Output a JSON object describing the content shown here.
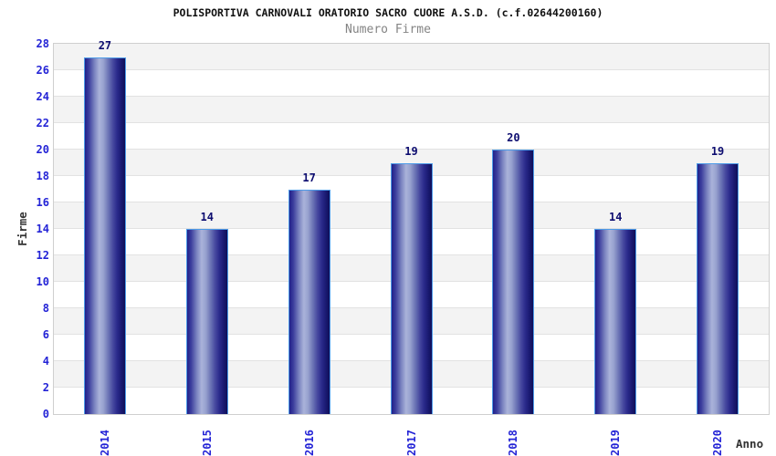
{
  "chart_data": {
    "type": "bar",
    "title": "POLISPORTIVA CARNOVALI ORATORIO SACRO CUORE A.S.D. (c.f.02644200160)",
    "subtitle": "Numero Firme",
    "xlabel": "Anno",
    "ylabel": "Firme",
    "categories": [
      "2014",
      "2015",
      "2016",
      "2017",
      "2018",
      "2019",
      "2020"
    ],
    "values": [
      27,
      14,
      17,
      19,
      20,
      14,
      19
    ],
    "ylim": [
      0,
      28
    ],
    "ytick_step": 2,
    "grid": true,
    "band_fill": true,
    "legend_position": "none",
    "colors": {
      "bar_gradient": [
        "#20208a",
        "#3d3f9e",
        "#7b84c0",
        "#aab3da",
        "#98a2cf",
        "#6d76b6",
        "#46489f",
        "#2b2b8c",
        "#1b1b74",
        "#0f0f58"
      ],
      "bar_gradient_stops": [
        0,
        10,
        24,
        36,
        46,
        58,
        70,
        80,
        90,
        100
      ],
      "bar_border": "#4e9ce8",
      "tick_label": "#2424d6",
      "value_label": "#0d0d70",
      "band_gray": "#f3f3f3",
      "band_white": "#ffffff",
      "gridline": "#e2e2e2",
      "plot_border": "#cfcfcf",
      "title": "#111111",
      "subtitle": "#848484",
      "axis_title": "#333333"
    }
  }
}
